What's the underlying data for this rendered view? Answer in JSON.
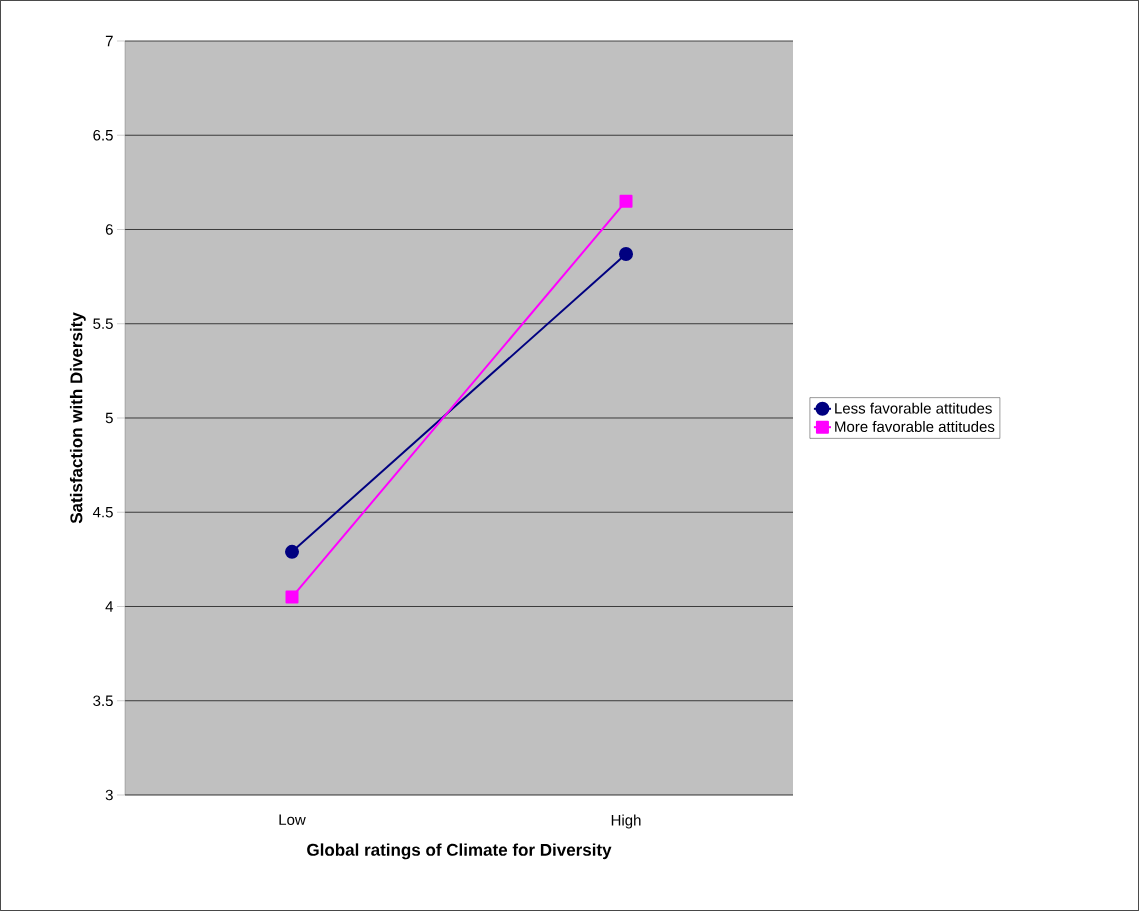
{
  "chart_data": {
    "type": "line",
    "xlabel": "Global ratings of Climate for Diversity",
    "ylabel": "Satisfaction with Diversity",
    "categories": [
      "Low",
      "High"
    ],
    "series": [
      {
        "name": "Less favorable attitudes",
        "color": "#000080",
        "marker": "circle",
        "values": [
          4.29,
          5.87
        ]
      },
      {
        "name": "More favorable attitudes",
        "color": "#ff00ff",
        "marker": "square",
        "values": [
          4.05,
          6.15
        ]
      }
    ],
    "ylim": [
      3,
      7
    ],
    "yticks": [
      3,
      3.5,
      4,
      4.5,
      5,
      5.5,
      6,
      6.5,
      7
    ],
    "grid": "y",
    "legend": "right",
    "line_style": "solid"
  }
}
